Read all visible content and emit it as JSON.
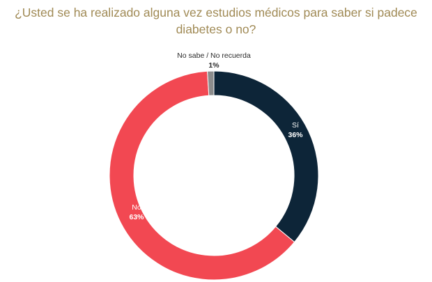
{
  "chart_data": {
    "type": "pie",
    "title_lines": [
      "¿Usted se ha realizado alguna vez estudios médicos para saber si padece",
      "diabetes  o no?"
    ],
    "slices": [
      {
        "label": "Sí",
        "value": 36,
        "value_label": "36%",
        "color": "#0d2538",
        "text_color": "#ffffff"
      },
      {
        "label": "No",
        "value": 63,
        "value_label": "63%",
        "color": "#f24852",
        "text_color": "#ffffff"
      },
      {
        "label": "No sabe / No recuerda",
        "value": 1,
        "value_label": "1%",
        "color": "#8c8c8c",
        "text_color": "#2a2a2a"
      }
    ],
    "start": "top, clockwise",
    "legend": "none"
  }
}
